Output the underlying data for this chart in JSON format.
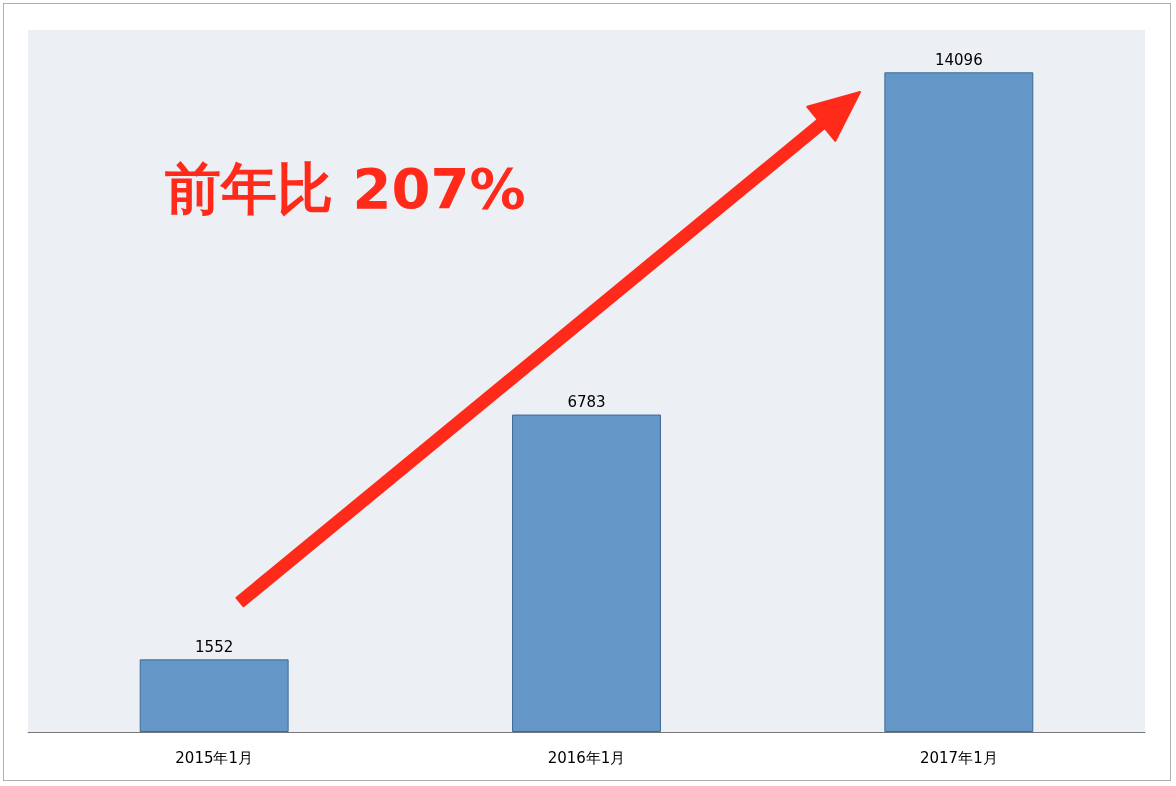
{
  "chart_data": {
    "type": "bar",
    "categories": [
      "2015年1月",
      "2016年1月",
      "2017年1月"
    ],
    "values": [
      1552,
      6783,
      14096
    ],
    "color": "#6496c8",
    "data_labels": true,
    "annotations": [
      "前年比 207%"
    ]
  }
}
